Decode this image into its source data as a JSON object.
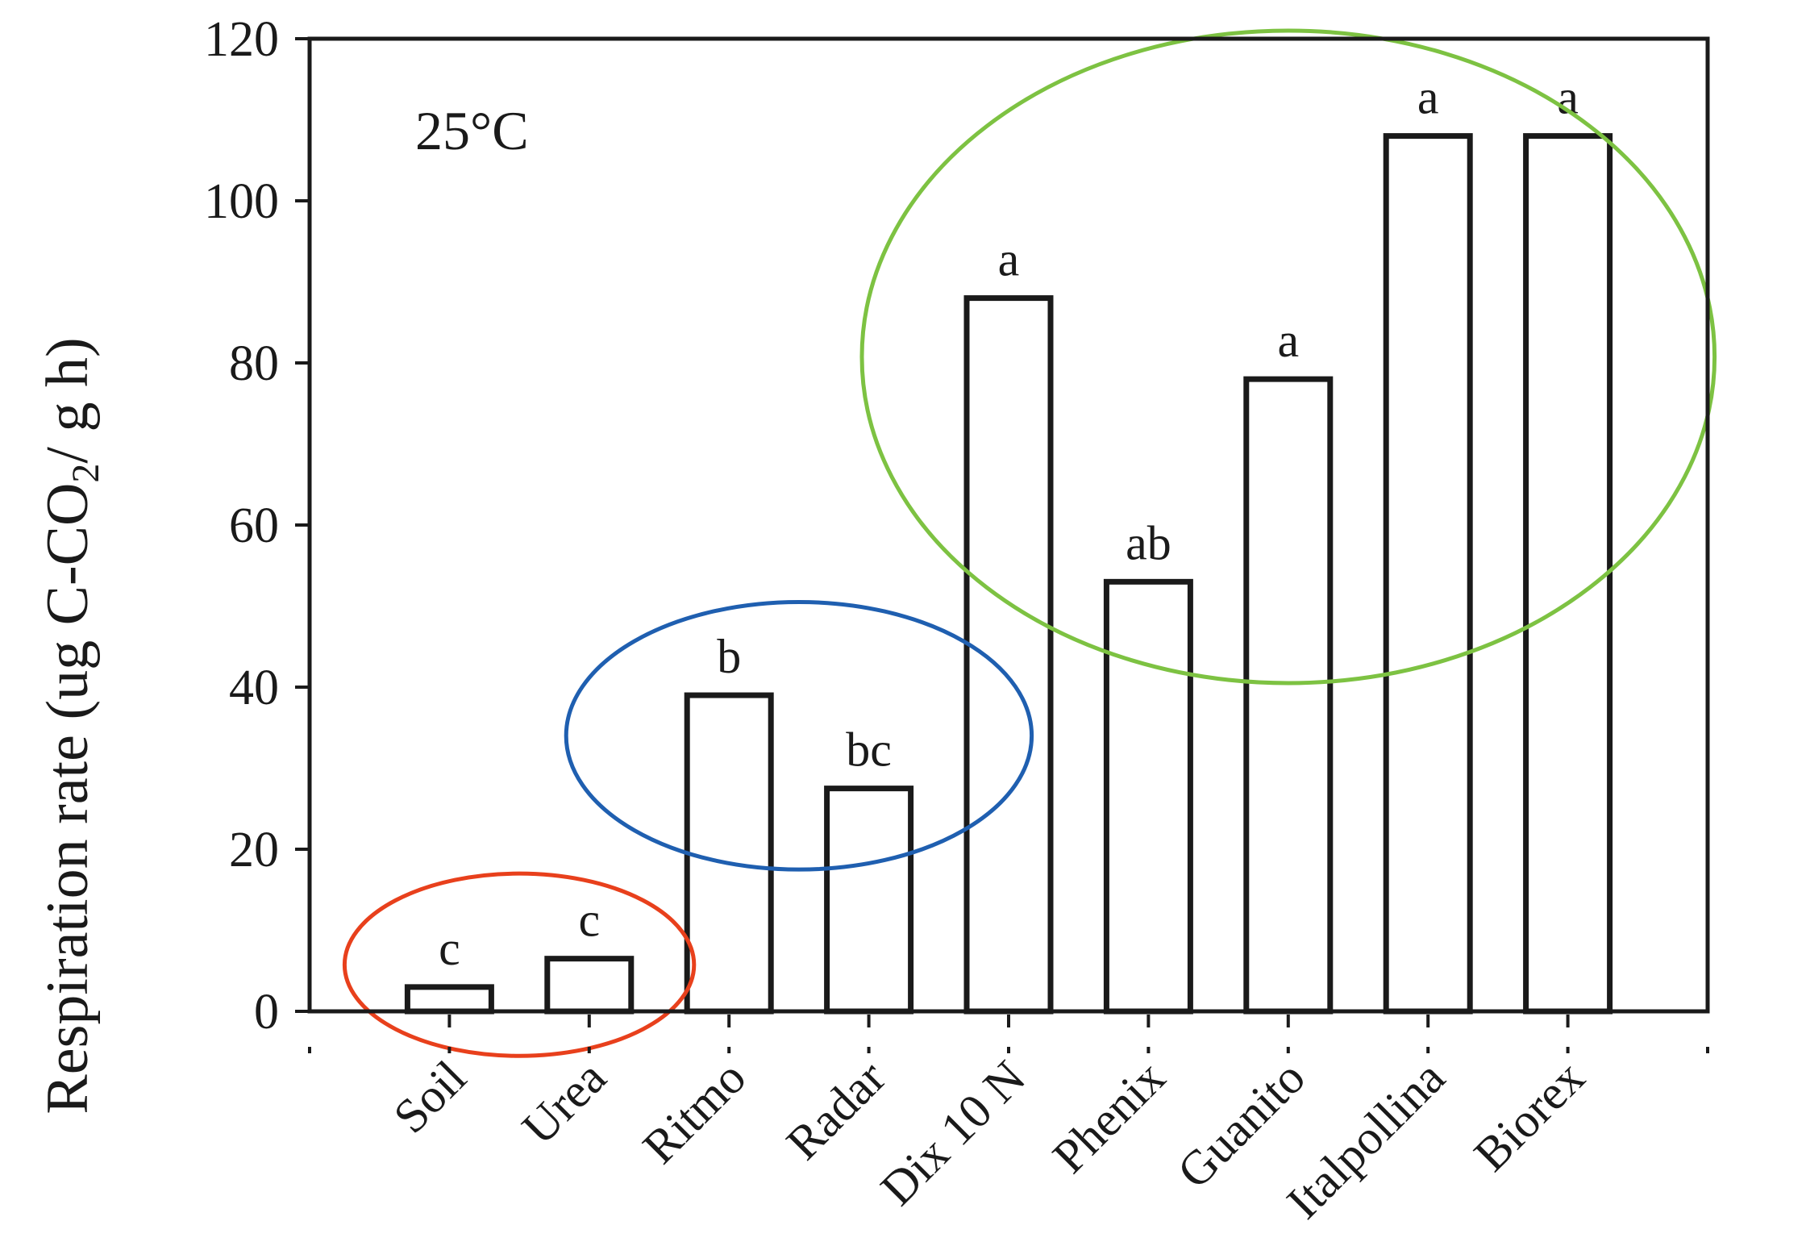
{
  "chart_data": {
    "type": "bar",
    "categories": [
      "Soil",
      "Urea",
      "Ritmo",
      "Radar",
      "Dix 10 N",
      "Phenix",
      "Guanito",
      "Italpollina",
      "Biorex"
    ],
    "values": [
      3,
      6.5,
      39,
      27.5,
      88,
      53,
      78,
      108,
      108
    ],
    "bar_labels": [
      "c",
      "c",
      "b",
      "bc",
      "a",
      "ab",
      "a",
      "a",
      "a"
    ],
    "title": "",
    "xlabel": "",
    "ylabel_prefix": "Respiration rate (ug C-CO",
    "ylabel_sub": "2",
    "ylabel_suffix": "/ g h)",
    "ylim": [
      0,
      120
    ],
    "yticks": [
      0,
      20,
      40,
      60,
      80,
      100,
      120
    ],
    "annotation": "25°C",
    "grid": false,
    "legend": "none",
    "groups": [
      {
        "color": "#e8401c",
        "categories": [
          "Soil",
          "Urea"
        ]
      },
      {
        "color": "#1f5fb0",
        "categories": [
          "Ritmo",
          "Radar"
        ]
      },
      {
        "color": "#7dc242",
        "categories": [
          "Dix 10 N",
          "Phenix",
          "Guanito",
          "Italpollina",
          "Biorex"
        ]
      }
    ]
  }
}
